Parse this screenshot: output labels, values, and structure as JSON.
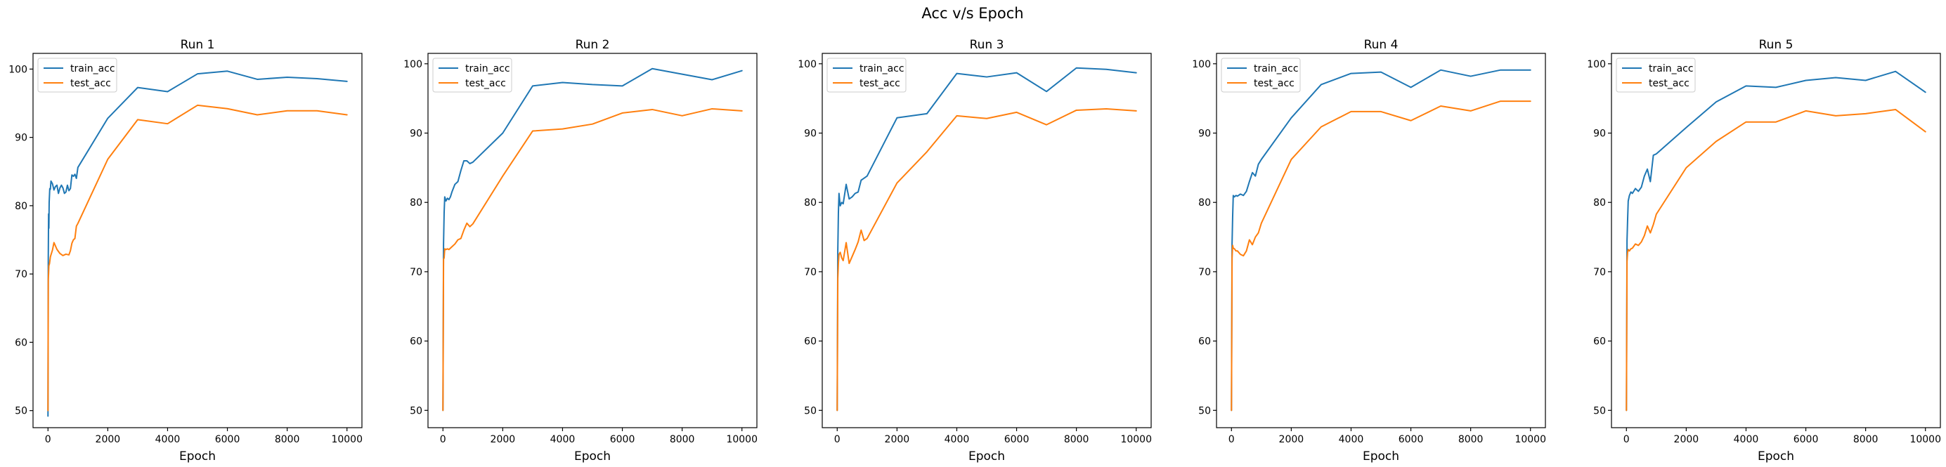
{
  "figure": {
    "suptitle": "Acc v/s Epoch"
  },
  "colors": {
    "train_acc": "#1f77b4",
    "test_acc": "#ff7f0e"
  },
  "chart_data": [
    {
      "type": "line",
      "title": "Run 1",
      "xlabel": "Epoch",
      "ylabel": "",
      "xlim": [
        -500,
        10500
      ],
      "ylim": [
        47.5,
        102.3
      ],
      "xticks": [
        0,
        2000,
        4000,
        6000,
        8000,
        10000
      ],
      "yticks": [
        50,
        60,
        70,
        80,
        90,
        100
      ],
      "legend": "top-left",
      "grid": false,
      "series": [
        {
          "name": "train_acc",
          "x": [
            0,
            10,
            20,
            30,
            40,
            60,
            80,
            100,
            150,
            200,
            250,
            300,
            350,
            400,
            450,
            500,
            550,
            600,
            650,
            700,
            750,
            800,
            850,
            900,
            950,
            1000,
            2000,
            3000,
            4000,
            5000,
            6000,
            7000,
            8000,
            9000,
            10000
          ],
          "values": [
            49.2,
            72.5,
            78.8,
            76.7,
            80.5,
            82.5,
            82.4,
            83.6,
            83.2,
            82.3,
            82.8,
            83.0,
            81.8,
            82.6,
            83.0,
            82.6,
            81.8,
            82.0,
            83.0,
            82.2,
            82.5,
            84.5,
            84.3,
            84.6,
            84.0,
            85.6,
            92.8,
            97.3,
            96.7,
            99.3,
            99.7,
            98.5,
            98.8,
            98.6,
            98.2
          ]
        },
        {
          "name": "test_acc",
          "x": [
            0,
            10,
            20,
            30,
            50,
            80,
            100,
            150,
            200,
            250,
            300,
            400,
            500,
            600,
            700,
            750,
            800,
            850,
            900,
            950,
            1000,
            2000,
            3000,
            4000,
            5000,
            6000,
            7000,
            8000,
            9000,
            10000
          ],
          "values": [
            50.0,
            69.2,
            70.0,
            71.2,
            71.5,
            72.5,
            72.8,
            73.5,
            74.6,
            74.1,
            73.6,
            73.0,
            72.7,
            72.9,
            72.8,
            73.4,
            74.5,
            75.0,
            75.2,
            77.0,
            77.4,
            86.8,
            92.6,
            92.0,
            94.7,
            94.2,
            93.3,
            93.9,
            93.9,
            93.3
          ]
        }
      ]
    },
    {
      "type": "line",
      "title": "Run 2",
      "xlabel": "Epoch",
      "ylabel": "",
      "xlim": [
        -500,
        10500
      ],
      "ylim": [
        47.5,
        101.5
      ],
      "xticks": [
        0,
        2000,
        4000,
        6000,
        8000,
        10000
      ],
      "yticks": [
        50,
        60,
        70,
        80,
        90,
        100
      ],
      "legend": "top-left",
      "grid": false,
      "series": [
        {
          "name": "train_acc",
          "x": [
            0,
            20,
            40,
            60,
            100,
            150,
            200,
            250,
            300,
            400,
            500,
            600,
            700,
            800,
            900,
            1000,
            2000,
            3000,
            4000,
            5000,
            6000,
            7000,
            8000,
            9000,
            10000
          ],
          "values": [
            50.0,
            74.0,
            78.5,
            80.8,
            80.2,
            80.6,
            80.4,
            80.8,
            81.5,
            82.6,
            83.0,
            84.6,
            86.0,
            86.0,
            85.6,
            85.8,
            90.0,
            96.8,
            97.3,
            97.0,
            96.8,
            99.3,
            98.5,
            97.7,
            99.0
          ]
        },
        {
          "name": "test_acc",
          "x": [
            0,
            20,
            40,
            60,
            100,
            150,
            200,
            300,
            400,
            500,
            600,
            700,
            800,
            900,
            1000,
            2000,
            3000,
            4000,
            5000,
            6000,
            7000,
            8000,
            9000,
            10000
          ],
          "values": [
            50.0,
            71.8,
            72.0,
            73.3,
            73.2,
            73.3,
            73.2,
            73.6,
            74.0,
            74.6,
            74.8,
            76.0,
            77.0,
            76.5,
            76.9,
            83.8,
            90.3,
            90.6,
            91.3,
            92.9,
            93.4,
            92.5,
            93.5,
            93.2
          ]
        }
      ]
    },
    {
      "type": "line",
      "title": "Run 3",
      "xlabel": "Epoch",
      "ylabel": "",
      "xlim": [
        -500,
        10500
      ],
      "ylim": [
        47.5,
        101.5
      ],
      "xticks": [
        0,
        2000,
        4000,
        6000,
        8000,
        10000
      ],
      "yticks": [
        50,
        60,
        70,
        80,
        90,
        100
      ],
      "legend": "top-left",
      "grid": false,
      "series": [
        {
          "name": "train_acc",
          "x": [
            0,
            20,
            40,
            60,
            100,
            150,
            200,
            300,
            400,
            500,
            600,
            700,
            800,
            900,
            1000,
            2000,
            3000,
            4000,
            5000,
            6000,
            7000,
            8000,
            9000,
            10000
          ],
          "values": [
            50.0,
            73.0,
            78.5,
            81.3,
            79.5,
            80.0,
            79.8,
            82.6,
            80.5,
            80.8,
            81.3,
            81.5,
            83.2,
            83.5,
            83.8,
            92.2,
            92.8,
            98.6,
            98.1,
            98.7,
            96.0,
            99.4,
            99.2,
            98.7
          ]
        },
        {
          "name": "test_acc",
          "x": [
            0,
            20,
            40,
            60,
            100,
            150,
            200,
            300,
            400,
            500,
            600,
            700,
            800,
            900,
            1000,
            2000,
            3000,
            4000,
            5000,
            6000,
            7000,
            8000,
            9000,
            10000
          ],
          "values": [
            50.0,
            69.0,
            71.2,
            72.5,
            72.8,
            72.0,
            71.6,
            74.2,
            71.2,
            72.2,
            73.2,
            74.3,
            76.0,
            74.5,
            74.8,
            82.8,
            87.3,
            92.5,
            92.1,
            93.0,
            91.2,
            93.3,
            93.5,
            93.2
          ]
        }
      ]
    },
    {
      "type": "line",
      "title": "Run 4",
      "xlabel": "Epoch",
      "ylabel": "",
      "xlim": [
        -500,
        10500
      ],
      "ylim": [
        47.5,
        101.5
      ],
      "xticks": [
        0,
        2000,
        4000,
        6000,
        8000,
        10000
      ],
      "yticks": [
        50,
        60,
        70,
        80,
        90,
        100
      ],
      "legend": "top-left",
      "grid": false,
      "series": [
        {
          "name": "train_acc",
          "x": [
            0,
            20,
            40,
            60,
            100,
            150,
            200,
            300,
            400,
            500,
            600,
            700,
            800,
            900,
            1000,
            2000,
            3000,
            4000,
            5000,
            6000,
            7000,
            8000,
            9000,
            10000
          ],
          "values": [
            50.0,
            74.0,
            78.0,
            81.0,
            80.8,
            81.0,
            80.9,
            81.2,
            81.0,
            81.6,
            83.0,
            84.3,
            83.8,
            85.5,
            86.2,
            92.2,
            97.0,
            98.6,
            98.8,
            96.6,
            99.1,
            98.2,
            99.1,
            99.1
          ]
        },
        {
          "name": "test_acc",
          "x": [
            0,
            20,
            40,
            60,
            100,
            150,
            200,
            300,
            400,
            500,
            600,
            700,
            800,
            900,
            1000,
            2000,
            3000,
            4000,
            5000,
            6000,
            7000,
            8000,
            9000,
            10000
          ],
          "values": [
            50.0,
            72.0,
            73.8,
            73.4,
            73.3,
            73.0,
            73.0,
            72.5,
            72.3,
            73.0,
            74.6,
            73.9,
            75.0,
            75.6,
            77.0,
            86.2,
            90.9,
            93.1,
            93.1,
            91.8,
            93.9,
            93.2,
            94.6,
            94.6
          ]
        }
      ]
    },
    {
      "type": "line",
      "title": "Run 5",
      "xlabel": "Epoch",
      "ylabel": "",
      "xlim": [
        -500,
        10500
      ],
      "ylim": [
        47.5,
        101.5
      ],
      "xticks": [
        0,
        2000,
        4000,
        6000,
        8000,
        10000
      ],
      "yticks": [
        50,
        60,
        70,
        80,
        90,
        100
      ],
      "legend": "top-left",
      "grid": false,
      "series": [
        {
          "name": "train_acc",
          "x": [
            0,
            20,
            40,
            60,
            100,
            150,
            200,
            300,
            400,
            500,
            600,
            700,
            800,
            900,
            1000,
            2000,
            3000,
            4000,
            5000,
            6000,
            7000,
            8000,
            9000,
            10000
          ],
          "values": [
            50.0,
            74.5,
            77.5,
            80.2,
            81.0,
            81.5,
            81.3,
            82.0,
            81.6,
            82.2,
            83.8,
            84.8,
            83.0,
            86.8,
            87.0,
            90.8,
            94.5,
            96.8,
            96.6,
            97.6,
            98.0,
            97.6,
            98.9,
            95.9
          ]
        },
        {
          "name": "test_acc",
          "x": [
            0,
            20,
            40,
            60,
            100,
            150,
            200,
            300,
            400,
            500,
            600,
            700,
            800,
            900,
            1000,
            2000,
            3000,
            4000,
            5000,
            6000,
            7000,
            8000,
            9000,
            10000
          ],
          "values": [
            50.0,
            71.5,
            72.8,
            73.2,
            73.0,
            73.3,
            73.4,
            74.0,
            73.8,
            74.3,
            75.2,
            76.6,
            75.6,
            76.8,
            78.3,
            85.0,
            88.8,
            91.6,
            91.6,
            93.2,
            92.5,
            92.8,
            93.4,
            90.2
          ]
        }
      ]
    }
  ]
}
